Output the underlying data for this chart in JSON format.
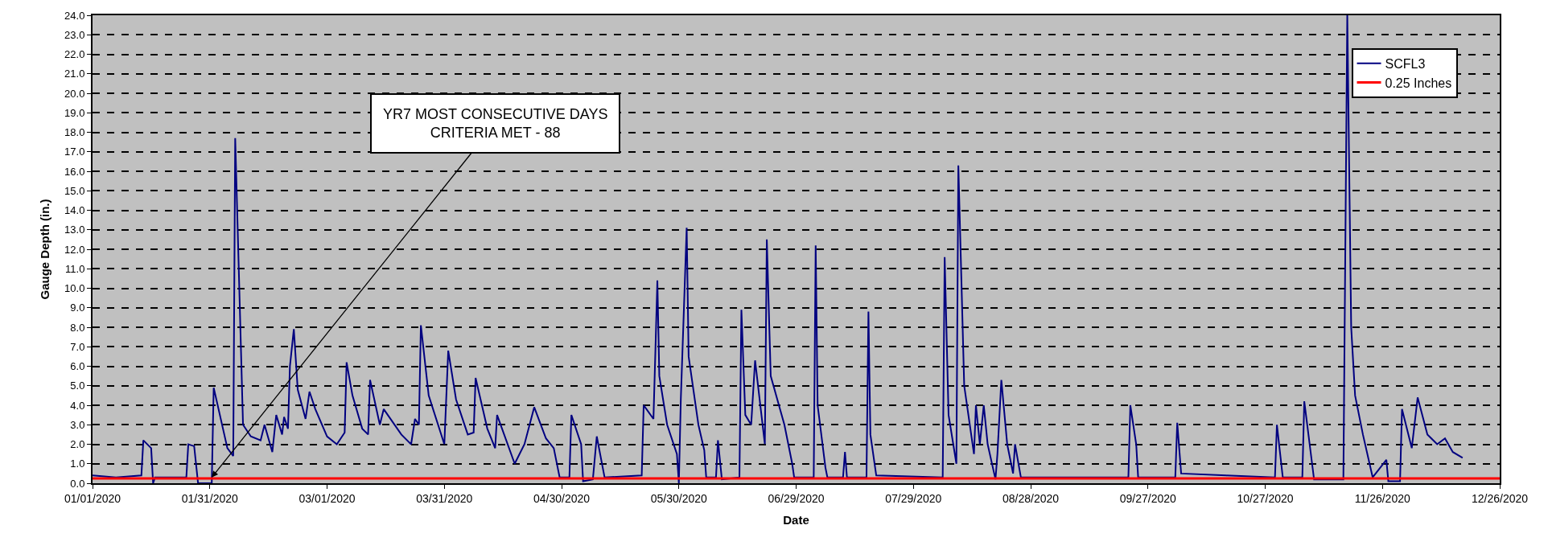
{
  "chart_data": {
    "type": "line",
    "xlabel": "Date",
    "ylabel": "Gauge Depth (in.)",
    "series": [
      {
        "name": "SCFL3",
        "color": "#000080",
        "x": [
          "2020-01-01",
          "2020-01-07",
          "2020-01-13T12:00",
          "2020-01-14",
          "2020-01-16",
          "2020-01-16T12:00",
          "2020-01-17",
          "2020-01-25",
          "2020-01-25T12:00",
          "2020-01-27",
          "2020-01-28",
          "2020-01-31T12:00",
          "2020-02-01",
          "2020-02-04T12:00",
          "2020-02-06",
          "2020-02-06T12:00",
          "2020-02-08T12:00",
          "2020-02-10T12:00",
          "2020-02-13",
          "2020-02-14",
          "2020-02-16",
          "2020-02-17",
          "2020-02-18T12:00",
          "2020-02-19",
          "2020-02-20",
          "2020-02-20T12:00",
          "2020-02-21T12:00",
          "2020-02-22T12:00",
          "2020-02-24T12:00",
          "2020-02-25T12:00",
          "2020-02-27",
          "2020-03-01",
          "2020-03-03T12:00",
          "2020-03-05T12:00",
          "2020-03-06",
          "2020-03-07T12:00",
          "2020-03-10",
          "2020-03-11T12:00",
          "2020-03-12",
          "2020-03-14T12:00",
          "2020-03-15T12:00",
          "2020-03-20",
          "2020-03-22T12:00",
          "2020-03-23T12:00",
          "2020-03-24T12:00",
          "2020-03-25",
          "2020-03-27",
          "2020-03-31",
          "2020-04-01",
          "2020-04-03",
          "2020-04-06",
          "2020-04-07T12:00",
          "2020-04-08",
          "2020-04-11",
          "2020-04-13",
          "2020-04-13T12:00",
          "2020-04-18",
          "2020-04-20T12:00",
          "2020-04-23",
          "2020-04-26",
          "2020-04-28",
          "2020-04-29T12:00",
          "2020-05-02",
          "2020-05-02T12:00",
          "2020-05-05",
          "2020-05-05T12:00",
          "2020-05-08",
          "2020-05-09",
          "2020-05-11",
          "2020-05-20T12:00",
          "2020-05-21",
          "2020-05-23T12:00",
          "2020-05-24",
          "2020-05-24T12:00",
          "2020-05-25",
          "2020-05-27",
          "2020-05-29T12:00",
          "2020-05-30",
          "2020-05-30T12:00",
          "2020-06-01",
          "2020-06-01T12:00",
          "2020-06-04",
          "2020-06-05T12:00",
          "2020-06-06",
          "2020-06-08T12:00",
          "2020-06-09",
          "2020-06-10",
          "2020-06-14T12:00",
          "2020-06-15",
          "2020-06-16",
          "2020-06-17T12:00",
          "2020-06-18T12:00",
          "2020-06-21",
          "2020-06-21T12:00",
          "2020-06-22T12:00",
          "2020-06-26",
          "2020-06-28",
          "2020-06-28T12:00",
          "2020-07-03T12:00",
          "2020-07-04",
          "2020-07-04T12:00",
          "2020-07-06T12:00",
          "2020-07-07",
          "2020-07-11",
          "2020-07-11T12:00",
          "2020-07-12",
          "2020-07-17",
          "2020-07-17T12:00",
          "2020-07-18",
          "2020-07-19T12:00",
          "2020-08-05T12:00",
          "2020-08-06",
          "2020-08-07",
          "2020-08-09",
          "2020-08-09T12:00",
          "2020-08-11",
          "2020-08-13T12:00",
          "2020-08-14",
          "2020-08-15",
          "2020-08-16",
          "2020-08-17",
          "2020-08-19",
          "2020-08-19T12:00",
          "2020-08-20T12:00",
          "2020-08-22",
          "2020-08-23T12:00",
          "2020-08-24",
          "2020-08-25T12:00",
          "2020-09-22",
          "2020-09-22T12:00",
          "2020-09-24",
          "2020-09-24T12:00",
          "2020-10-04",
          "2020-10-04T12:00",
          "2020-10-05T12:00",
          "2020-10-17",
          "2020-10-29T12:00",
          "2020-10-30",
          "2020-10-31T12:00",
          "2020-11-05T12:00",
          "2020-11-06",
          "2020-11-08",
          "2020-11-08T12:00",
          "2020-11-16",
          "2020-11-17",
          "2020-11-18",
          "2020-11-19",
          "2020-11-21",
          "2020-11-23T12:00",
          "2020-11-27",
          "2020-11-27T12:00",
          "2020-11-30T12:00",
          "2020-12-01",
          "2020-12-03T12:00",
          "2020-12-05",
          "2020-12-07T12:00",
          "2020-12-10",
          "2020-12-12",
          "2020-12-14",
          "2020-12-16T12:00"
        ],
        "values": [
          0.4,
          0.3,
          0.4,
          2.2,
          1.8,
          0.0,
          0.3,
          0.3,
          2.0,
          1.9,
          0.0,
          0.0,
          4.9,
          1.8,
          1.4,
          17.7,
          3.0,
          2.4,
          2.2,
          3.0,
          1.6,
          3.5,
          2.5,
          3.4,
          2.8,
          6.0,
          7.9,
          4.8,
          3.3,
          4.7,
          3.8,
          2.4,
          2.0,
          2.6,
          6.2,
          4.5,
          2.8,
          2.5,
          5.3,
          3.0,
          3.8,
          2.5,
          2.0,
          3.3,
          3.0,
          8.1,
          4.5,
          2.0,
          6.8,
          4.3,
          2.5,
          2.6,
          5.4,
          2.8,
          1.8,
          3.5,
          1.0,
          2.0,
          3.9,
          2.3,
          1.8,
          0.3,
          0.3,
          3.5,
          2.0,
          0.1,
          0.2,
          2.4,
          0.3,
          0.4,
          4.0,
          3.3,
          6.8,
          10.4,
          5.5,
          3.0,
          1.5,
          0.0,
          4.3,
          13.1,
          6.5,
          3.0,
          1.7,
          0.3,
          0.3,
          2.2,
          0.2,
          0.3,
          8.9,
          3.5,
          3.0,
          6.3,
          2.0,
          12.5,
          5.5,
          3.0,
          1.0,
          0.3,
          0.3,
          12.2,
          4.0,
          0.8,
          0.3,
          0.3,
          1.6,
          0.3,
          0.3,
          8.8,
          2.5,
          0.4,
          0.3,
          11.6,
          3.5,
          1.0,
          16.3,
          5.0,
          1.5,
          4.0,
          2.0,
          4.0,
          2.0,
          0.2,
          1.5,
          5.3,
          2.0,
          0.5,
          2.0,
          0.3,
          0.3,
          4.0,
          2.0,
          0.3,
          0.3,
          3.1,
          0.5,
          0.4,
          0.3,
          3.0,
          0.3,
          0.3,
          4.2,
          1.0,
          0.2,
          0.2,
          24.0,
          8.0,
          4.5,
          2.5,
          0.3,
          1.2,
          0.1,
          0.1,
          3.8,
          1.8,
          4.4,
          2.5,
          2.0,
          2.3,
          1.6,
          1.3
        ]
      },
      {
        "name": "0.25 Inches",
        "color": "#ff0000",
        "x": [
          "2020-01-01",
          "2020-12-26"
        ],
        "values": [
          0.25,
          0.25
        ]
      }
    ],
    "xlim": [
      "2020-01-01",
      "2020-12-26"
    ],
    "xticks": [
      {
        "value": "2020-01-01",
        "label": "01/01/2020"
      },
      {
        "value": "2020-01-31",
        "label": "01/31/2020"
      },
      {
        "value": "2020-03-01",
        "label": "03/01/2020"
      },
      {
        "value": "2020-03-31",
        "label": "03/31/2020"
      },
      {
        "value": "2020-04-30",
        "label": "04/30/2020"
      },
      {
        "value": "2020-05-30",
        "label": "05/30/2020"
      },
      {
        "value": "2020-06-29",
        "label": "06/29/2020"
      },
      {
        "value": "2020-07-29",
        "label": "07/29/2020"
      },
      {
        "value": "2020-08-28",
        "label": "08/28/2020"
      },
      {
        "value": "2020-09-27",
        "label": "09/27/2020"
      },
      {
        "value": "2020-10-27",
        "label": "10/27/2020"
      },
      {
        "value": "2020-11-26",
        "label": "11/26/2020"
      },
      {
        "value": "2020-12-26",
        "label": "12/26/2020"
      }
    ],
    "ylim": [
      0,
      24
    ],
    "yticks": [
      {
        "value": 0,
        "label": "0.0"
      },
      {
        "value": 1,
        "label": "1.0"
      },
      {
        "value": 2,
        "label": "2.0"
      },
      {
        "value": 3,
        "label": "3.0"
      },
      {
        "value": 4,
        "label": "4.0"
      },
      {
        "value": 5,
        "label": "5.0"
      },
      {
        "value": 6,
        "label": "6.0"
      },
      {
        "value": 7,
        "label": "7.0"
      },
      {
        "value": 8,
        "label": "8.0"
      },
      {
        "value": 9,
        "label": "9.0"
      },
      {
        "value": 10,
        "label": "10.0"
      },
      {
        "value": 11,
        "label": "11.0"
      },
      {
        "value": 12,
        "label": "12.0"
      },
      {
        "value": 13,
        "label": "13.0"
      },
      {
        "value": 14,
        "label": "14.0"
      },
      {
        "value": 15,
        "label": "15.0"
      },
      {
        "value": 16,
        "label": "16.0"
      },
      {
        "value": 17,
        "label": "17.0"
      },
      {
        "value": 18,
        "label": "18.0"
      },
      {
        "value": 19,
        "label": "19.0"
      },
      {
        "value": 20,
        "label": "20.0"
      },
      {
        "value": 21,
        "label": "21.0"
      },
      {
        "value": 22,
        "label": "22.0"
      },
      {
        "value": 23,
        "label": "23.0"
      },
      {
        "value": 24,
        "label": "24.0"
      }
    ],
    "grid": "y",
    "legend": "top right",
    "annotations": [
      {
        "text": "YR7 MOST CONSECUTIVE DAYS\nCRITERIA MET - 88",
        "x": "2020-01-31T12:00",
        "y": 0.3
      }
    ]
  }
}
